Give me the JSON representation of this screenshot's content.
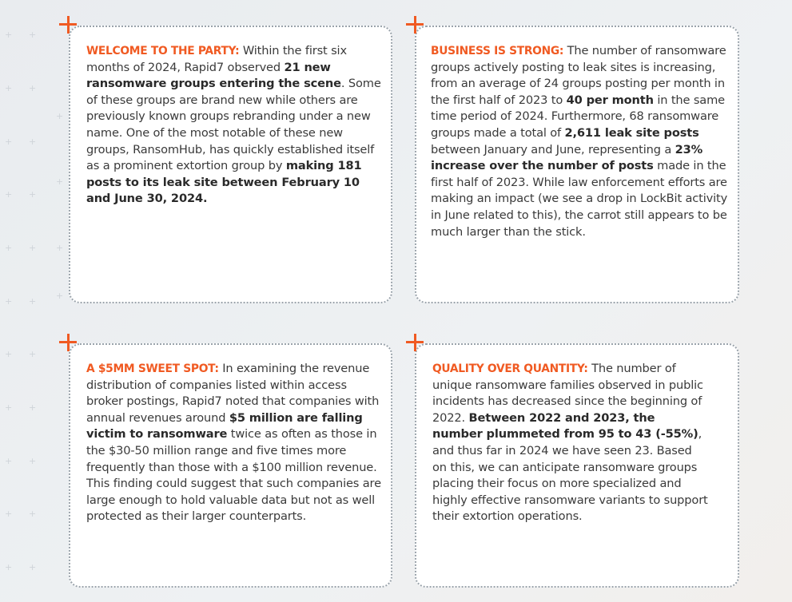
{
  "cards": [
    {
      "heading": "WELCOME TO THE PARTY:",
      "t1": " Within the first six months of 2024, Rapid7 observed ",
      "b1": "21 new ransomware groups entering the scene",
      "t2": ". Some of these groups are brand new while others are previously known groups rebranding under a new name. One of the most notable of these new groups, RansomHub, has quickly established itself as a prominent extortion group by ",
      "b2": "making 181 posts to its leak site between February 10 and June 30, 2024."
    },
    {
      "heading": "BUSINESS IS STRONG:",
      "t1": " The number of ransomware groups actively posting to leak sites is increasing, from an average of 24 groups posting per month in the first half of 2023 to ",
      "b1": "40 per month",
      "t2": " in the same time period of 2024. Furthermore, 68 ransomware groups made a total of ",
      "b2": "2,611 leak site posts",
      "t3": " between January and June, representing a ",
      "b3": "23% increase over the number of posts",
      "t4": " made in the first half of 2023. While law enforcement efforts are making an impact (we see a drop in LockBit activity in June related to this), the carrot still appears to be much larger than the stick."
    },
    {
      "heading": "A $5MM SWEET SPOT:",
      "t1": " In examining the revenue distribution of companies listed within access broker postings, Rapid7 noted that companies with annual revenues around ",
      "b1": "$5 million are falling victim to ransomware",
      "t2": " twice as often as those in the $30-50 million range and five times more frequently than those with a $100 million revenue. This finding could suggest that such companies are large enough to hold valuable data but not as well protected as their larger counterparts."
    },
    {
      "heading": "QUALITY OVER QUANTITY:",
      "t1": " The number of unique ransomware families observed in public incidents has decreased since the beginning of 2022. ",
      "b1": "Between 2022 and 2023, the number plummeted from 95 to 43 (-55%)",
      "t2": ", and thus far in 2024 we have seen 23. Based on this, we can anticipate ransomware groups placing their focus on more specialized and highly effective ransomware variants to support their extortion operations."
    }
  ],
  "colors": {
    "accent": "#f05a22",
    "border": "#9aa3ab",
    "text": "#3a3a3a",
    "card": "#ffffff"
  },
  "icons": {
    "corner": "plus-icon",
    "background": "plus-icon"
  }
}
